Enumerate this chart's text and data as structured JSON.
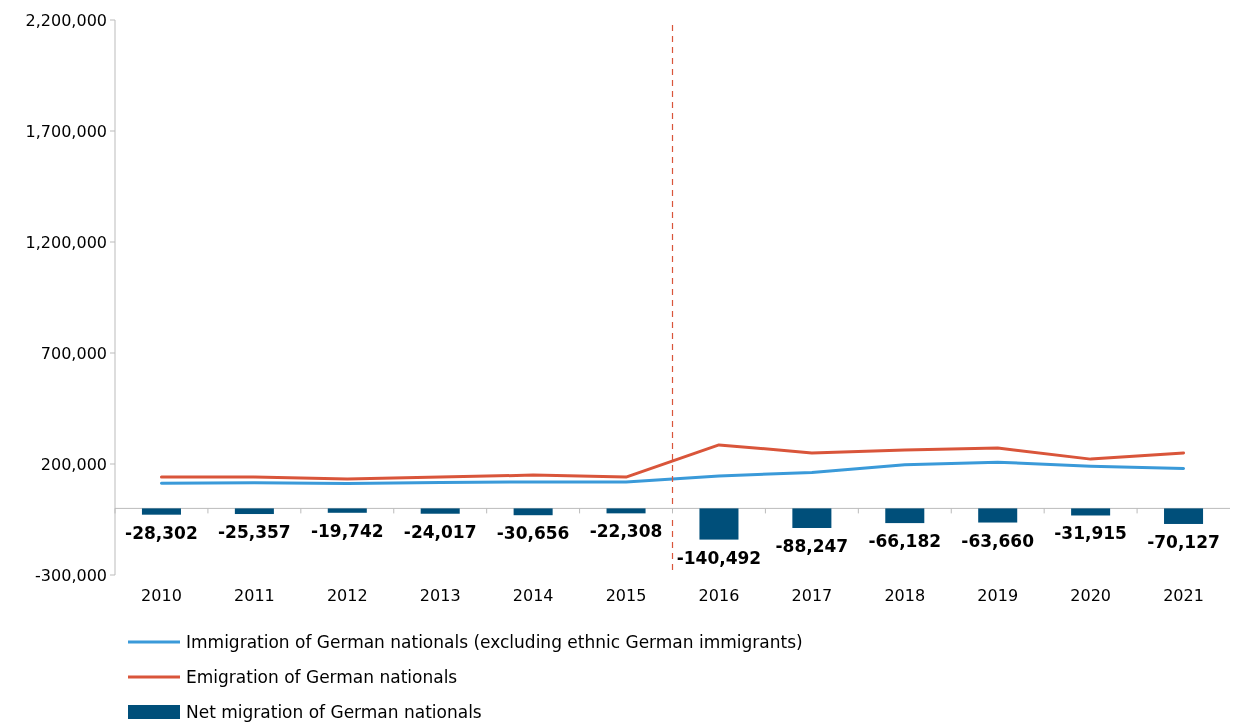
{
  "chart_data": {
    "type": "bar",
    "categories": [
      "2010",
      "2011",
      "2012",
      "2013",
      "2014",
      "2015",
      "2016",
      "2017",
      "2018",
      "2019",
      "2020",
      "2021"
    ],
    "series": [
      {
        "name": "Immigration of German nationals (excluding ethnic German immigrants)",
        "type": "line",
        "color": "#3a9ad9",
        "values": [
          113000,
          116000,
          112000,
          117000,
          119000,
          119000,
          146000,
          162000,
          197000,
          208000,
          190000,
          180000
        ]
      },
      {
        "name": "Emigration of German nationals",
        "type": "line",
        "color": "#d9553a",
        "values": [
          141000,
          141000,
          132000,
          141000,
          150000,
          141000,
          286000,
          250000,
          263000,
          272000,
          222000,
          250000
        ]
      },
      {
        "name": "Net migration of German nationals",
        "color": "#004f7a",
        "values": [
          -28302,
          -25357,
          -19742,
          -24017,
          -30656,
          -22308,
          -140492,
          -88247,
          -66182,
          -63660,
          -31915,
          -70127
        ],
        "value_labels": [
          "-28,302",
          "-25,357",
          "-19,742",
          "-24,017",
          "-30,656",
          "-22,308",
          "-140,492",
          "-88,247",
          "-66,182",
          "-63,660",
          "-31,915",
          "-70,127"
        ]
      }
    ],
    "ylim": [
      -300000,
      2200000
    ],
    "yticks": [
      {
        "value": -300000,
        "label": "-300,000"
      },
      {
        "value": 200000,
        "label": "200,000"
      },
      {
        "value": 700000,
        "label": "700,000"
      },
      {
        "value": 1200000,
        "label": "1,200,000"
      },
      {
        "value": 1700000,
        "label": "1,700,000"
      },
      {
        "value": 2200000,
        "label": "2,200,000"
      }
    ],
    "legend": "bottom",
    "grid": false
  }
}
